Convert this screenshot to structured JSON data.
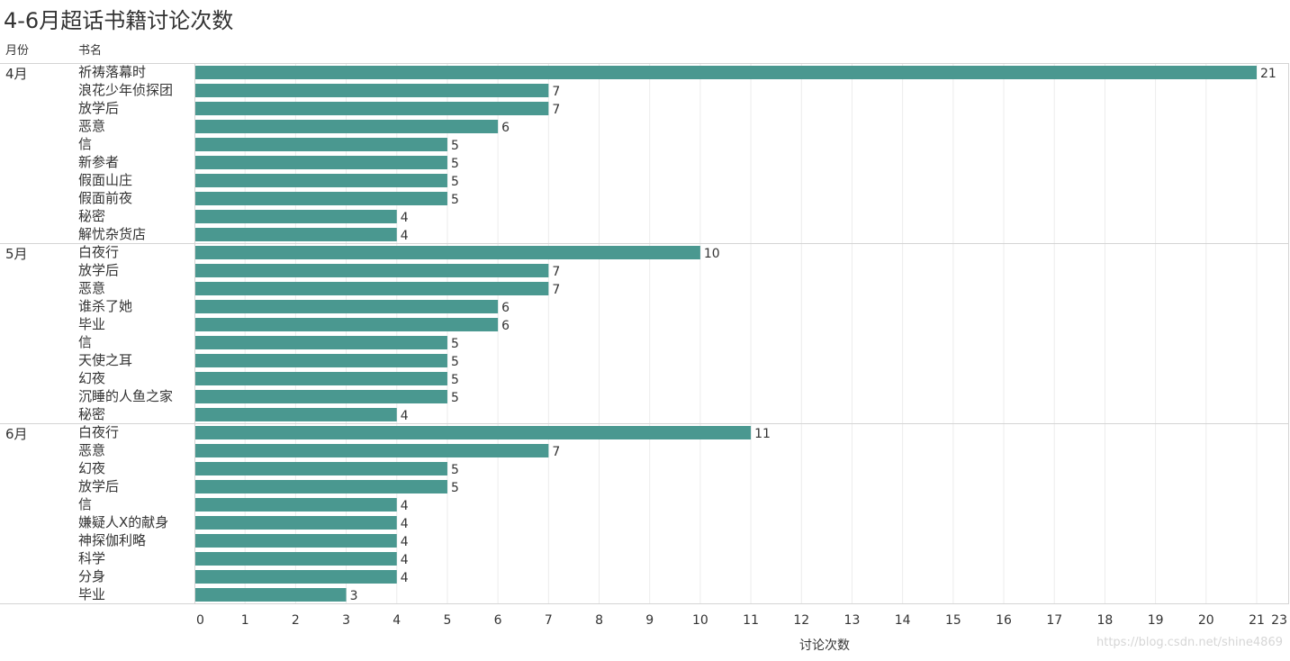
{
  "title": "4-6月超话书籍讨论次数",
  "watermark": "https://blog.csdn.net/shine4869",
  "colors": {
    "bar": "#4a9890",
    "grid": "#ececec",
    "group_line": "#d4d4d4",
    "text": "#333333"
  },
  "chart_data": {
    "type": "bar",
    "orientation": "horizontal",
    "title": "4-6月超话书籍讨论次数",
    "xlabel": "讨论次数",
    "row_headers": [
      "月份",
      "书名"
    ],
    "xlim": [
      0,
      23
    ],
    "x_ticks": [
      0,
      1,
      2,
      3,
      4,
      5,
      6,
      7,
      8,
      9,
      10,
      11,
      12,
      13,
      14,
      15,
      16,
      17,
      18,
      19,
      20,
      21,
      22,
      23
    ],
    "grid": true,
    "data_labels": true,
    "groups": [
      {
        "month": "4月",
        "rows": [
          {
            "book": "祈祷落幕时",
            "value": 21
          },
          {
            "book": "浪花少年侦探团",
            "value": 7
          },
          {
            "book": "放学后",
            "value": 7
          },
          {
            "book": "恶意",
            "value": 6
          },
          {
            "book": "信",
            "value": 5
          },
          {
            "book": "新参者",
            "value": 5
          },
          {
            "book": "假面山庄",
            "value": 5
          },
          {
            "book": "假面前夜",
            "value": 5
          },
          {
            "book": "秘密",
            "value": 4
          },
          {
            "book": "解忧杂货店",
            "value": 4
          }
        ]
      },
      {
        "month": "5月",
        "rows": [
          {
            "book": "白夜行",
            "value": 10
          },
          {
            "book": "放学后",
            "value": 7
          },
          {
            "book": "恶意",
            "value": 7
          },
          {
            "book": "谁杀了她",
            "value": 6
          },
          {
            "book": "毕业",
            "value": 6
          },
          {
            "book": "信",
            "value": 5
          },
          {
            "book": "天使之耳",
            "value": 5
          },
          {
            "book": "幻夜",
            "value": 5
          },
          {
            "book": "沉睡的人鱼之家",
            "value": 5
          },
          {
            "book": "秘密",
            "value": 4
          }
        ]
      },
      {
        "month": "6月",
        "rows": [
          {
            "book": "白夜行",
            "value": 11
          },
          {
            "book": "恶意",
            "value": 7
          },
          {
            "book": "幻夜",
            "value": 5
          },
          {
            "book": "放学后",
            "value": 5
          },
          {
            "book": "信",
            "value": 4
          },
          {
            "book": "嫌疑人X的献身",
            "value": 4
          },
          {
            "book": "神探伽利略",
            "value": 4
          },
          {
            "book": "科学",
            "value": 4
          },
          {
            "book": "分身",
            "value": 4
          },
          {
            "book": "毕业",
            "value": 3
          }
        ]
      }
    ]
  }
}
